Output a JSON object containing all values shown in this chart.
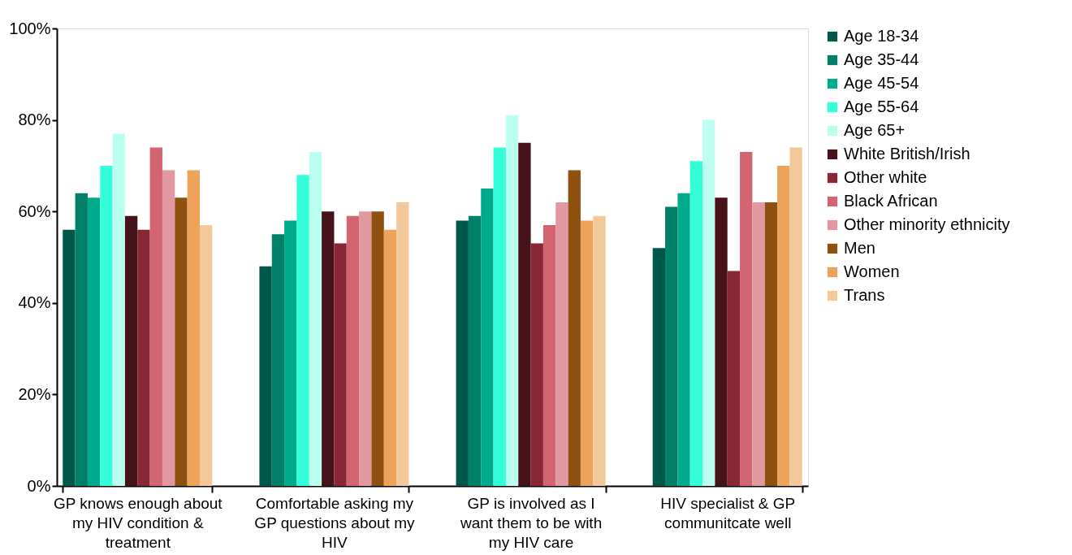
{
  "chart_data": {
    "type": "bar",
    "categories": [
      "GP knows enough about my HIV condition & treatment",
      "Comfortable asking my GP questions about my HIV",
      "GP is involved as I want them to be with my HIV care",
      "HIV specialist & GP communitcate well"
    ],
    "series": [
      {
        "name": "Age 18-34",
        "color": "#00584a",
        "values": [
          56,
          48,
          58,
          52
        ]
      },
      {
        "name": "Age 35-44",
        "color": "#007f69",
        "values": [
          64,
          55,
          59,
          61
        ]
      },
      {
        "name": "Age 45-54",
        "color": "#00aa8c",
        "values": [
          63,
          58,
          65,
          64
        ]
      },
      {
        "name": "Age 55-64",
        "color": "#33ffd9",
        "values": [
          70,
          68,
          74,
          71
        ]
      },
      {
        "name": " Age 65+",
        "color": "#bbfff0",
        "values": [
          77,
          73,
          81,
          80
        ]
      },
      {
        "name": "White British/Irish",
        "color": "#47131b",
        "values": [
          59,
          60,
          75,
          63
        ]
      },
      {
        "name": "Other white",
        "color": "#882735",
        "values": [
          56,
          53,
          53,
          47
        ]
      },
      {
        "name": "Black African",
        "color": "#d36471",
        "values": [
          74,
          59,
          57,
          73
        ]
      },
      {
        "name": "Other minority ethnicity",
        "color": "#e397a0",
        "values": [
          69,
          60,
          62,
          62
        ]
      },
      {
        "name": "Men",
        "color": "#8e5112",
        "values": [
          63,
          60,
          69,
          62
        ]
      },
      {
        "name": "Women",
        "color": "#eda35a",
        "values": [
          69,
          56,
          58,
          70
        ]
      },
      {
        "name": "Trans",
        "color": "#f3c99b",
        "values": [
          57,
          62,
          59,
          74
        ]
      }
    ],
    "ylim": [
      0,
      100
    ],
    "yticks": [
      {
        "value": 0,
        "label": "0%"
      },
      {
        "value": 20,
        "label": "20%"
      },
      {
        "value": 40,
        "label": "40%"
      },
      {
        "value": 60,
        "label": "60%"
      },
      {
        "value": 80,
        "label": "80%"
      },
      {
        "value": 100,
        "label": "100%"
      }
    ],
    "grid": false,
    "legend": "right"
  }
}
